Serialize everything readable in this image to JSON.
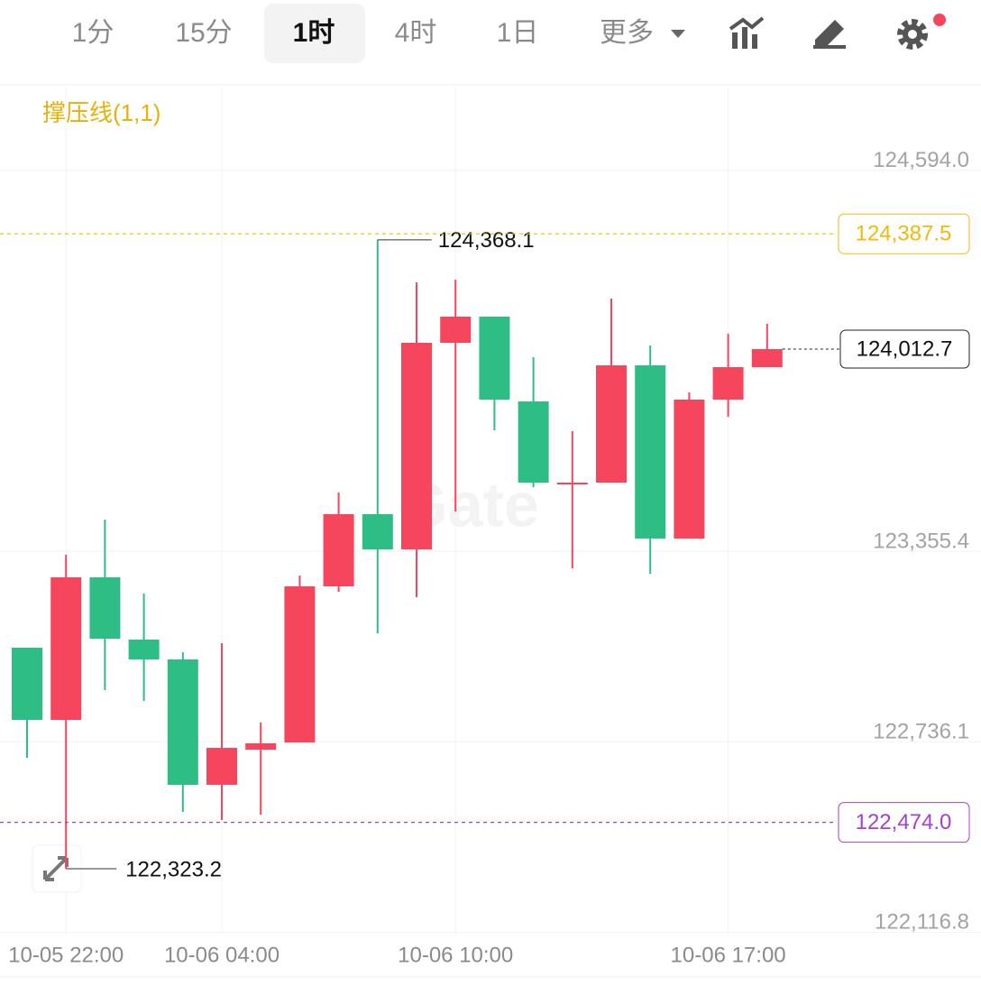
{
  "toolbar": {
    "tabs": [
      "1分",
      "15分",
      "1时",
      "4时",
      "1日",
      "更多"
    ],
    "active": 2
  },
  "chart_data": {
    "type": "candlestick",
    "indicator": "撑压线(1,1)",
    "watermark": "Gate",
    "categories": [
      null,
      "10-05 22:00",
      null,
      null,
      null,
      "10-06 04:00",
      null,
      null,
      null,
      null,
      null,
      "10-06 10:00",
      null,
      null,
      null,
      null,
      null,
      null,
      "10-06 17:00",
      null
    ],
    "open": [
      123041.9,
      122807.2,
      123270.7,
      123068.3,
      123003.7,
      122596.1,
      122710.4,
      122733.9,
      123241.3,
      123476.0,
      123361.6,
      124033.2,
      124118.3,
      123842.6,
      123575.7,
      123578.6,
      123959.9,
      123396.8,
      123848.5,
      123954.0
    ],
    "high": [
      123041.9,
      123344.0,
      123458.4,
      123217.9,
      123027.2,
      123056.5,
      122798.4,
      123276.5,
      123546.4,
      124368.1,
      124229.7,
      124238.5,
      124118.3,
      123986.3,
      123745.8,
      124176.9,
      124024.4,
      123871.9,
      124062.6,
      124094.8
    ],
    "low": [
      122684.1,
      122323.2,
      122904.0,
      122868.8,
      122508.1,
      122481.7,
      122499.3,
      122733.9,
      123223.7,
      123088.8,
      123206.1,
      123484.8,
      123748.7,
      123564.0,
      123300.0,
      123578.6,
      123282.4,
      123396.8,
      123792.7,
      123954.0
    ],
    "close": [
      122807.2,
      123270.7,
      123071.2,
      123003.7,
      122596.1,
      122716.3,
      122731.0,
      123241.3,
      123476.0,
      123361.6,
      124033.2,
      124118.3,
      123848.5,
      123578.6,
      123578.6,
      123959.9,
      123396.8,
      123848.5,
      123954.0,
      124012.7
    ],
    "up_color": "#f6465d",
    "down_color": "#2ebd85",
    "ylim": [
      122112.1,
      124869.1
    ],
    "yticks": [
      {
        "value": 124594.0,
        "label": "124,594.0"
      },
      {
        "value": 123355.4,
        "label": "123,355.4"
      },
      {
        "value": 122736.1,
        "label": "122,736.1"
      },
      {
        "value": 122116.8,
        "label": "122,116.8"
      }
    ],
    "grid": true,
    "high_mark": {
      "value": 124368.1,
      "label": "124,368.1"
    },
    "low_mark": {
      "value": 122323.2,
      "label": "122,323.2"
    },
    "price_lines": [
      {
        "value": 124387.5,
        "label": "124,387.5",
        "color": "#f0b90b"
      },
      {
        "value": 122474.0,
        "label": "122,474.0",
        "color": "#a63fc9"
      }
    ],
    "last_price": {
      "value": 124012.7,
      "label": "124,012.7"
    }
  }
}
